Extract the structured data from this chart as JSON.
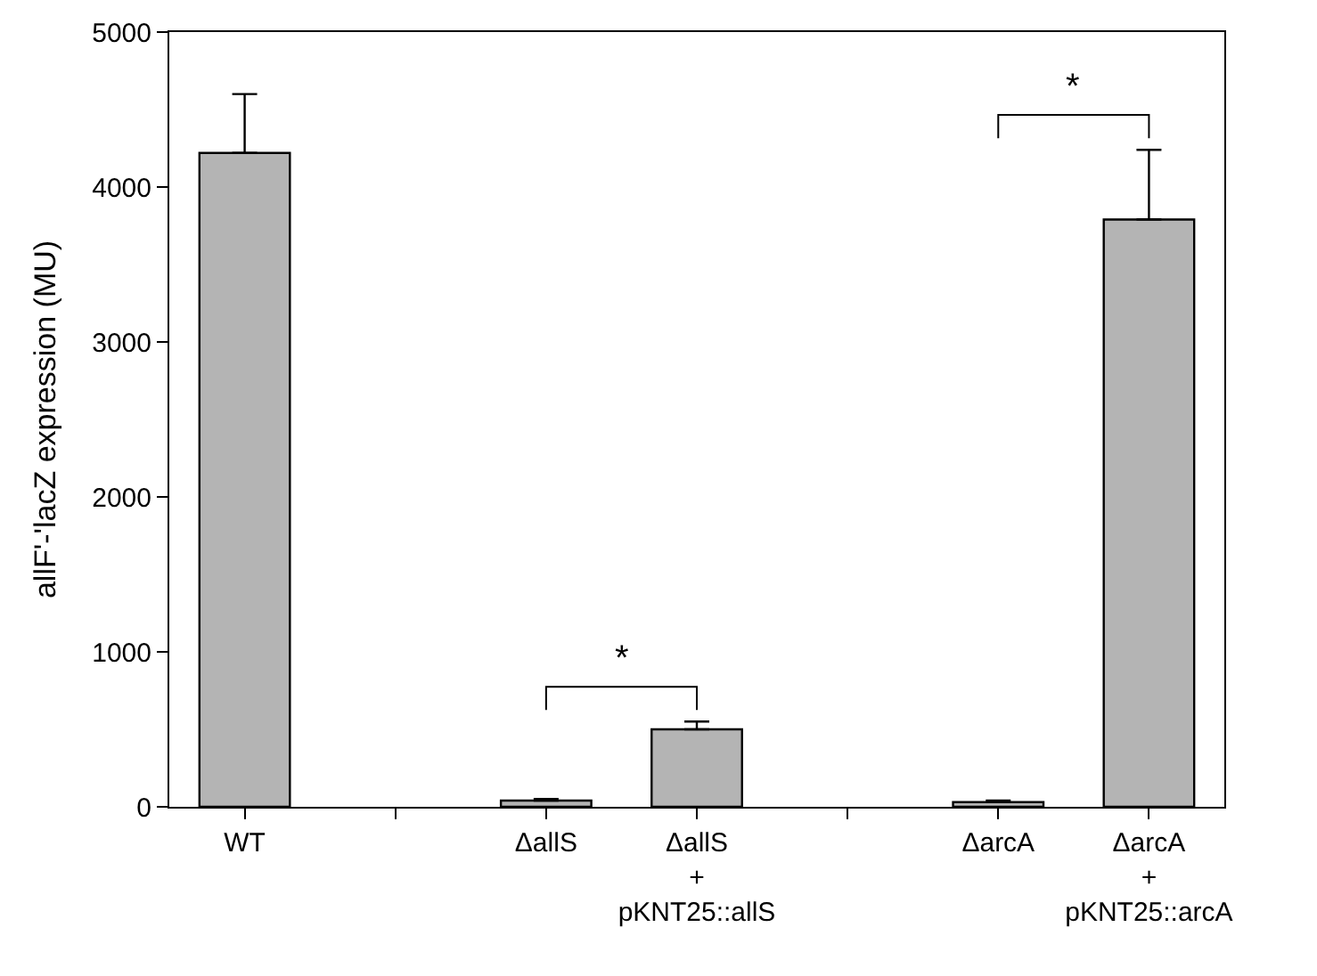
{
  "chart_data": {
    "type": "bar",
    "ylabel": "allF'-'lacZ expression (MU)",
    "categories": [
      "WT",
      null,
      "ΔallS",
      "ΔallS\n+\npKNT25::allS",
      null,
      "ΔarcA",
      "ΔarcA\n+\npKNT25::arcA"
    ],
    "values": [
      4220,
      null,
      40,
      500,
      null,
      30,
      3790
    ],
    "errors": [
      [
        4220,
        4600
      ],
      null,
      [
        40,
        50
      ],
      [
        500,
        550
      ],
      null,
      [
        30,
        40
      ],
      [
        3790,
        4240
      ]
    ],
    "color": "#b4b4b4",
    "ylim": [
      0,
      5000
    ],
    "yticks": [
      0,
      1000,
      2000,
      3000,
      4000,
      5000
    ],
    "legend": false,
    "annotations": [
      "*",
      "*"
    ]
  }
}
